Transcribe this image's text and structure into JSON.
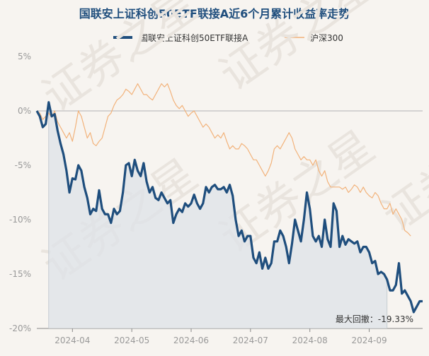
{
  "chart_data": {
    "type": "line",
    "title": "国联安上证科创50ETF联接A近6个月累计收益率走势",
    "watermark": "证券之星",
    "ylim": [
      -20,
      5
    ],
    "y_ticks": [
      5,
      0,
      -5,
      -10,
      -15,
      -20
    ],
    "y_tick_labels": [
      "5%",
      "0%",
      "-5%",
      "-10%",
      "-15%",
      "-20%"
    ],
    "x_ticks": [
      "2024-04",
      "2024-05",
      "2024-06",
      "2024-07",
      "2024-08",
      "2024-09"
    ],
    "x_tick_positions": [
      12,
      32,
      52,
      72,
      92,
      112
    ],
    "max_drawdown_label": "最大回撤：-19.33%",
    "max_drawdown_range": [
      4,
      118
    ],
    "colors": {
      "fund": "#1f4e7d",
      "index": "#f2b27a",
      "fill": "#dde3e8",
      "zero_line": "#c8c8c8",
      "title": "#1f4e7d",
      "axis_text": "#999999"
    },
    "series": [
      {
        "name": "国联安上证科创50ETF联接A",
        "values": [
          0,
          -0.5,
          -1.5,
          -1.2,
          0.8,
          -0.5,
          -0.3,
          -1.8,
          -3,
          -4,
          -5.5,
          -7.5,
          -6.2,
          -6.3,
          -5,
          -5.5,
          -7,
          -8,
          -9.5,
          -9,
          -9.2,
          -7.3,
          -9,
          -9.5,
          -9.5,
          -10.3,
          -9,
          -9.5,
          -9.2,
          -7.5,
          -5,
          -4.8,
          -6,
          -4.5,
          -5.5,
          -6,
          -4.8,
          -6.5,
          -7.5,
          -7,
          -8,
          -8.2,
          -7.5,
          -8,
          -8.5,
          -8.2,
          -10.3,
          -9.5,
          -9,
          -9.3,
          -8.5,
          -8.8,
          -8.5,
          -7.7,
          -8.5,
          -9,
          -8.5,
          -7,
          -7.5,
          -7,
          -6.8,
          -7.2,
          -7.2,
          -7,
          -7.5,
          -6.8,
          -7.8,
          -10,
          -11.5,
          -11,
          -12,
          -11.5,
          -11.5,
          -13.5,
          -14,
          -13,
          -14.5,
          -13.5,
          -14.5,
          -14,
          -12,
          -12,
          -11,
          -11.5,
          -12.5,
          -14,
          -12.2,
          -10,
          -11,
          -12,
          -10,
          -7.5,
          -9,
          -11.5,
          -12,
          -11.5,
          -12.5,
          -10,
          -11.8,
          -12.5,
          -8.5,
          -9.2,
          -12.5,
          -11.5,
          -12.3,
          -11.8,
          -12,
          -12.2,
          -12,
          -13,
          -12.5,
          -12.5,
          -13,
          -14,
          -13.8,
          -15,
          -14.8,
          -15,
          -15.5,
          -16.5,
          -16.5,
          -16,
          -14,
          -16.8,
          -16.5,
          -17,
          -17.5,
          -18.5,
          -18,
          -17.5,
          -17.5
        ]
      },
      {
        "name": "沪深300",
        "values": [
          0,
          -0.2,
          -0.8,
          -0.5,
          -0.2,
          -0.6,
          0,
          -1,
          -1.5,
          -2,
          -2.5,
          -2,
          -2.8,
          -1.5,
          0,
          -0.5,
          -1.5,
          -2.5,
          -2,
          -3,
          -3.2,
          -2.8,
          -2.5,
          -1.5,
          -0.5,
          -0.2,
          0.5,
          1,
          1.2,
          1.5,
          2,
          1.8,
          1.5,
          2,
          2.5,
          2,
          1.5,
          1.5,
          1.2,
          1,
          1.5,
          2,
          2.5,
          2.2,
          2.5,
          1.8,
          1,
          0.5,
          0.2,
          0.5,
          0,
          -0.5,
          -0.2,
          0,
          -0.5,
          -1,
          -1.5,
          -1.2,
          -1.5,
          -2,
          -2.5,
          -2.2,
          -2.5,
          -2,
          -2.8,
          -3.5,
          -3.2,
          -3.5,
          -3.5,
          -3,
          -3.2,
          -3.5,
          -4,
          -4.5,
          -4.5,
          -5,
          -5.5,
          -6,
          -5.5,
          -4.8,
          -3.5,
          -3.2,
          -3.5,
          -3,
          -2.5,
          -2,
          -2.5,
          -3.5,
          -4,
          -4.5,
          -4.2,
          -4.5,
          -4.5,
          -5,
          -4.5,
          -5.5,
          -6,
          -5.5,
          -6.5,
          -7,
          -7,
          -7,
          -7,
          -7.2,
          -7,
          -7.5,
          -7.2,
          -6.8,
          -7,
          -7.5,
          -7,
          -7.5,
          -7.8,
          -8,
          -7.5,
          -7.8,
          -8.5,
          -9,
          -9,
          -8.5,
          -9.5,
          -9,
          -9.5,
          -10,
          -11,
          -11.2,
          -11.5
        ]
      }
    ]
  }
}
